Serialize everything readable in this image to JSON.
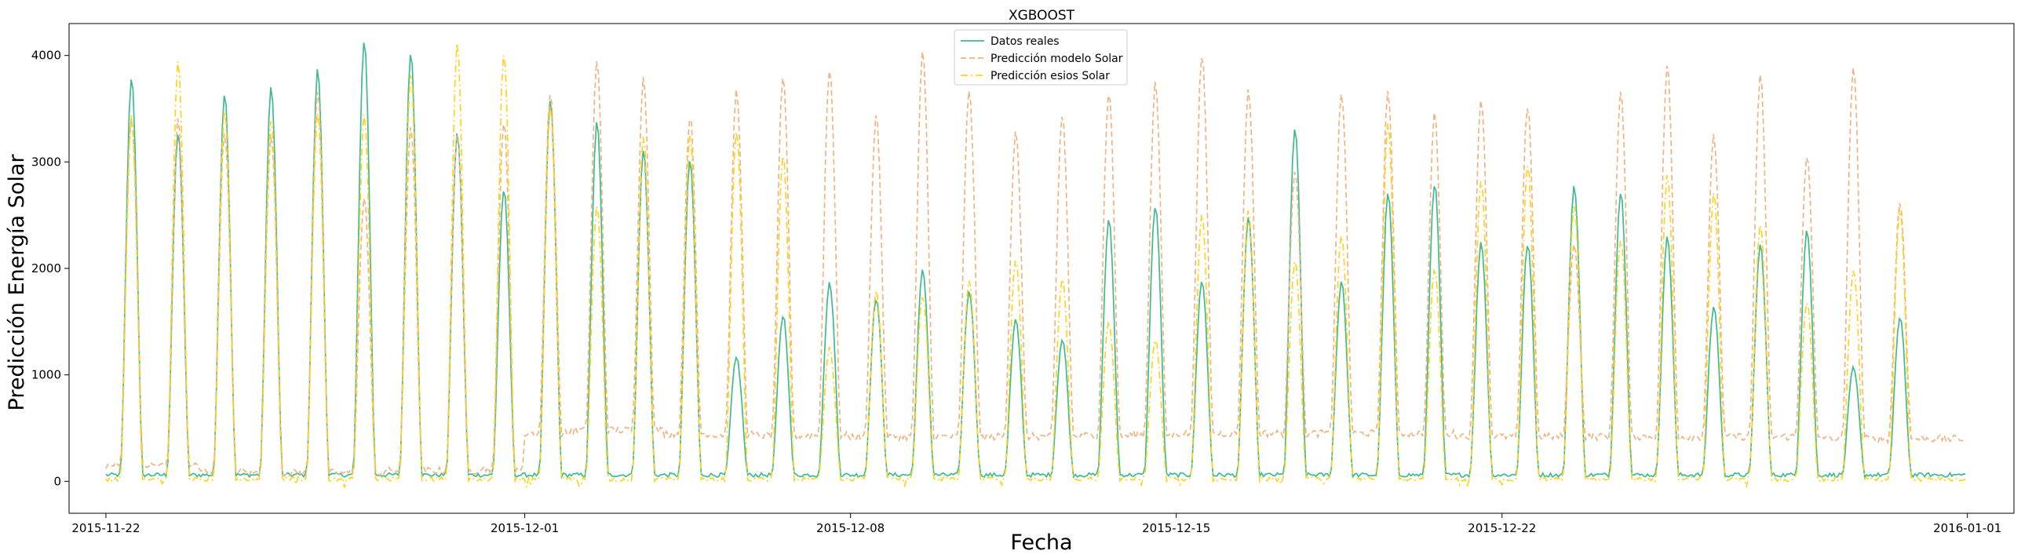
{
  "chart_data": {
    "type": "line",
    "title": "XGBOOST",
    "xlabel": "Fecha",
    "ylabel": "Predicción Energía Solar",
    "xlim": [
      "2015-11-21T05:00",
      "2016-01-02T00:00"
    ],
    "ylim": [
      -300,
      4300
    ],
    "x_ticks": [
      "2015-11-22",
      "2015-12-01",
      "2015-12-08",
      "2015-12-15",
      "2015-12-22",
      "2016-01-01"
    ],
    "y_ticks": [
      0,
      1000,
      2000,
      3000,
      4000
    ],
    "grid": false,
    "legend_position": "top-center",
    "x_start": "2015-11-22T00:00",
    "x_end": "2015-12-31T23:00",
    "x_step": "1 hour",
    "series": [
      {
        "name": "Datos reales",
        "color": "#3dbb8f",
        "style": "solid",
        "night_level": 60,
        "daily_peaks": [
          3800,
          3270,
          3650,
          3710,
          3870,
          4150,
          4040,
          3270,
          2740,
          3570,
          3370,
          3110,
          3010,
          1160,
          1560,
          1860,
          1720,
          1980,
          1790,
          1510,
          1330,
          2450,
          2590,
          1890,
          2480,
          3320,
          1880,
          2700,
          2800,
          2240,
          2230,
          2780,
          2720,
          2290,
          1640,
          2220,
          2360,
          1060,
          1530
        ]
      },
      {
        "name": "Predicción modelo Solar",
        "color": "#f0b482",
        "style": "dashed",
        "night_level": [
          150,
          150,
          100,
          80,
          80,
          80,
          100,
          100,
          120,
          450,
          480,
          480,
          450,
          440,
          430,
          430,
          420,
          420,
          420,
          420,
          420,
          430,
          440,
          450,
          450,
          450,
          450,
          450,
          450,
          430,
          420,
          420,
          420,
          420,
          420,
          420,
          420,
          400,
          400
        ],
        "daily_peaks": [
          3420,
          3390,
          3290,
          3250,
          3690,
          2650,
          3340,
          3270,
          3370,
          3650,
          3940,
          3790,
          3440,
          3660,
          3780,
          3890,
          3440,
          4020,
          3680,
          3300,
          3440,
          3660,
          3750,
          4000,
          3680,
          2940,
          3650,
          3660,
          3440,
          3600,
          3540,
          2210,
          3660,
          3900,
          3240,
          3800,
          3060,
          3900,
          2620
        ]
      },
      {
        "name": "Predicción esios Solar",
        "color": "#ffd21e",
        "style": "dashdot",
        "night_level": 20,
        "daily_peaks": [
          3430,
          3950,
          3500,
          3400,
          3480,
          3440,
          3840,
          4120,
          4030,
          3530,
          2580,
          3250,
          3240,
          3300,
          3060,
          1250,
          1790,
          1750,
          1900,
          2080,
          1900,
          1490,
          1330,
          2500,
          2550,
          2080,
          2320,
          3360,
          1990,
          2830,
          2970,
          2600,
          2280,
          2870,
          2720,
          2400,
          1690,
          2000,
          2550
        ]
      }
    ]
  }
}
